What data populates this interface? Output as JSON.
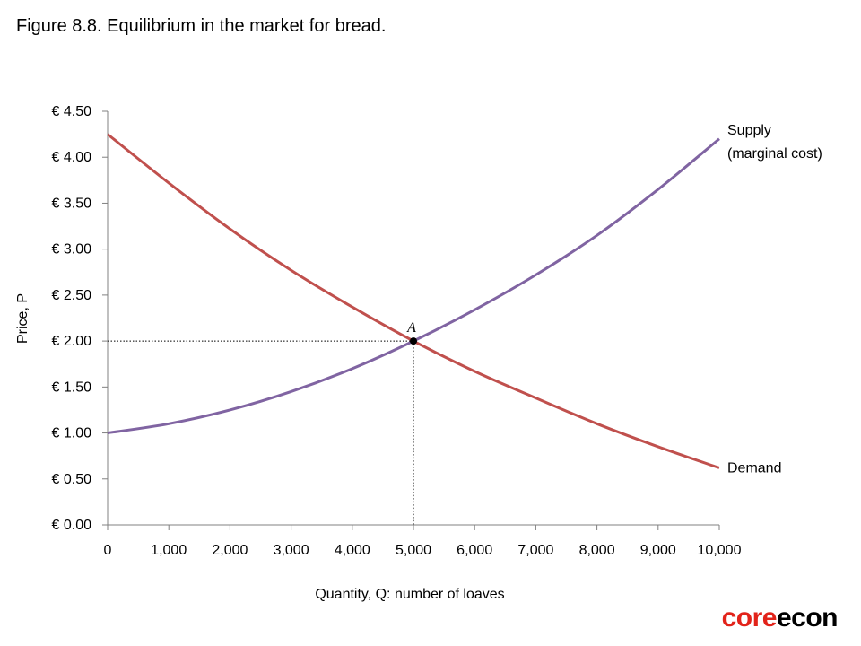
{
  "figure": {
    "title": "Figure 8.8. Equilibrium in the market for bread."
  },
  "brand": {
    "part1": "core",
    "part2": "econ",
    "color1": "#e2231a",
    "color2": "#000000"
  },
  "chart_data": {
    "type": "line",
    "title": "Figure 8.8. Equilibrium in the market for bread.",
    "xlabel": "Quantity, Q: number of loaves",
    "ylabel": "Price, P",
    "xlim": [
      0,
      10000
    ],
    "ylim": [
      0,
      4.5
    ],
    "x_ticks": [
      0,
      1000,
      2000,
      3000,
      4000,
      5000,
      6000,
      7000,
      8000,
      9000,
      10000
    ],
    "x_tick_labels": [
      "0",
      "1,000",
      "2,000",
      "3,000",
      "4,000",
      "5,000",
      "6,000",
      "7,000",
      "8,000",
      "9,000",
      "10,000"
    ],
    "y_ticks": [
      0,
      0.5,
      1,
      1.5,
      2,
      2.5,
      3,
      3.5,
      4,
      4.5
    ],
    "y_tick_labels": [
      "€ 0.00",
      "€ 0.50",
      "€ 1.00",
      "€ 1.50",
      "€ 2.00",
      "€ 2.50",
      "€ 3.00",
      "€ 3.50",
      "€ 4.00",
      "€ 4.50"
    ],
    "grid": false,
    "series": [
      {
        "name": "Demand",
        "label_lines": [
          "Demand"
        ],
        "color": "#c0504d",
        "x": [
          0,
          1000,
          2000,
          3000,
          4000,
          5000,
          6000,
          7000,
          8000,
          9000,
          10000
        ],
        "y": [
          4.25,
          3.72,
          3.22,
          2.77,
          2.37,
          2.0,
          1.67,
          1.38,
          1.1,
          0.85,
          0.62
        ]
      },
      {
        "name": "Supply (marginal cost)",
        "label_lines": [
          "Supply",
          "(marginal cost)"
        ],
        "color": "#8064a2",
        "x": [
          0,
          1000,
          2000,
          3000,
          4000,
          5000,
          6000,
          7000,
          8000,
          9000,
          10000
        ],
        "y": [
          1.0,
          1.1,
          1.25,
          1.45,
          1.7,
          2.0,
          2.34,
          2.72,
          3.15,
          3.65,
          4.2
        ]
      }
    ],
    "annotations": [
      {
        "label": "A",
        "x": 5000,
        "y": 2.0
      }
    ]
  }
}
